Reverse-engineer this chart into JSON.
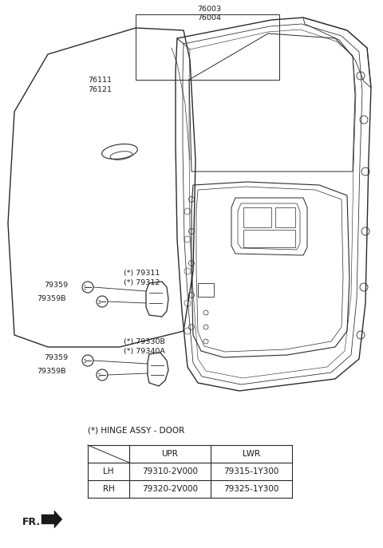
{
  "bg_color": "#ffffff",
  "table_title": "(*) HINGE ASSY - DOOR",
  "table_rows": [
    [
      "LH",
      "79310-2V000",
      "79315-1Y300"
    ],
    [
      "RH",
      "79320-2V000",
      "79325-1Y300"
    ]
  ],
  "line_color": "#2a2a2a",
  "text_color": "#1a1a1a",
  "label_76003": "76003",
  "label_76004": "76004",
  "label_76111": "76111",
  "label_76121": "76121",
  "label_79311": "(*) 79311",
  "label_79312": "(*) 79312",
  "label_79330B": "(*) 79330B",
  "label_79340A": "(*) 79340A",
  "label_79359_u": "79359",
  "label_79359B_u": "79359B",
  "label_79359_l": "79359",
  "label_79359B_l": "79359B",
  "label_fr": "FR."
}
